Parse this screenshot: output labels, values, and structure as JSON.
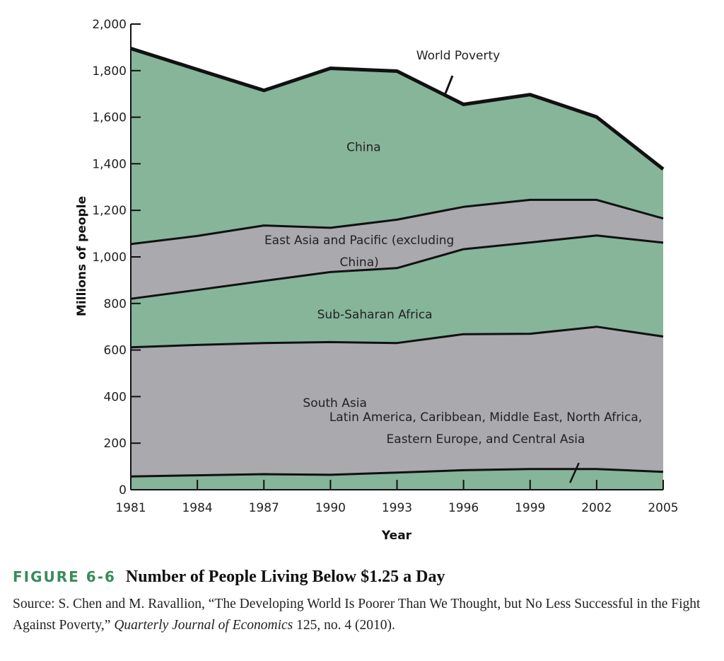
{
  "chart_data": {
    "type": "area",
    "title": "Number of People Living Below $1.25 a Day",
    "xlabel": "Year",
    "ylabel": "Millions of people",
    "x": [
      1981,
      1984,
      1987,
      1990,
      1993,
      1996,
      1999,
      2002,
      2005
    ],
    "x_ticks": [
      "1981",
      "1984",
      "1987",
      "1990",
      "1993",
      "1996",
      "1999",
      "2002",
      "2005"
    ],
    "y_ticks": [
      "0",
      "200",
      "400",
      "600",
      "800",
      "1,000",
      "1,200",
      "1,400",
      "1,600",
      "1,800",
      "2,000"
    ],
    "ylim": [
      0,
      2000
    ],
    "stacked": true,
    "series": [
      {
        "name": "Latin America, Caribbean, Middle East, North Africa, Eastern Europe, and Central Asia",
        "label_lines": [
          "Latin America, Caribbean, Middle East, North Africa,",
          "Eastern Europe, and Central Asia"
        ],
        "color": "#86b59a",
        "top": [
          57,
          62,
          67,
          64,
          74,
          84,
          89,
          89,
          77
        ]
      },
      {
        "name": "South Asia",
        "label_lines": [
          "South Asia"
        ],
        "color": "#a9a9ae",
        "top": [
          612,
          622,
          630,
          634,
          630,
          668,
          670,
          700,
          658
        ]
      },
      {
        "name": "Sub-Saharan Africa",
        "label_lines": [
          "Sub-Saharan Africa"
        ],
        "color": "#86b59a",
        "top": [
          820,
          858,
          897,
          935,
          952,
          1033,
          1062,
          1092,
          1061
        ]
      },
      {
        "name": "East Asia and Pacific (excluding China)",
        "label_lines": [
          "East Asia and Pacific (excluding",
          "China)"
        ],
        "color": "#a9a9ae",
        "top": [
          1055,
          1090,
          1135,
          1125,
          1160,
          1215,
          1245,
          1245,
          1165
        ]
      },
      {
        "name": "China",
        "label_lines": [
          "China"
        ],
        "color": "#86b59a",
        "top": [
          1895,
          1805,
          1715,
          1810,
          1798,
          1655,
          1697,
          1601,
          1377
        ]
      }
    ],
    "annotation": "World Poverty"
  },
  "caption": {
    "figure_number": "FIGURE 6-6",
    "figure_title": "Number of People Living Below $1.25 a Day",
    "source_prefix": "Source: S. Chen and M. Ravallion, “The Developing World Is Poorer Than We Thought, but No Less Successful in the Fight Against Poverty,” ",
    "source_journal": "Quarterly Journal of Economics",
    "source_suffix": " 125, no. 4 (2010)."
  },
  "colors": {
    "green_fill": "#86b59a",
    "gray_fill": "#a9a9ae",
    "figure_accent": "#3a8a5c"
  }
}
